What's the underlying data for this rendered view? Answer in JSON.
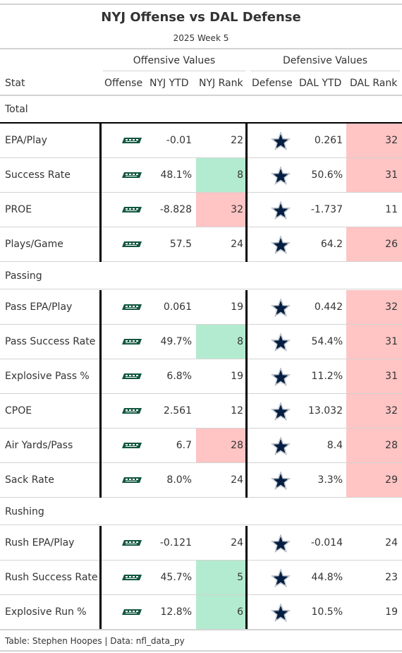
{
  "title": "NYJ Offense vs DAL Defense",
  "subtitle": "2025 Week 5",
  "spanners": {
    "offense": "Offensive Values",
    "defense": "Defensive Values"
  },
  "columns": {
    "stat": "Stat",
    "offense": "Offense",
    "nyj_ytd": "NYJ YTD",
    "nyj_rank": "NYJ Rank",
    "defense": "Defense",
    "dal_ytd": "DAL YTD",
    "dal_rank": "DAL Rank"
  },
  "logos": {
    "offense": "jets-logo-icon",
    "defense": "cowboys-star-icon"
  },
  "colors": {
    "good": "#b3ebd0",
    "bad": "#ffc4c4",
    "jets_green": "#125740",
    "cowboys_navy": "#041e42"
  },
  "groups": [
    {
      "label": "Total",
      "rows": [
        {
          "stat": "EPA/Play",
          "nyj_ytd": "-0.01",
          "nyj_rank": "22",
          "nyj_rank_hl": "",
          "dal_ytd": "0.261",
          "dal_rank": "32",
          "dal_rank_hl": "bad"
        },
        {
          "stat": "Success Rate",
          "nyj_ytd": "48.1%",
          "nyj_rank": "8",
          "nyj_rank_hl": "good",
          "dal_ytd": "50.6%",
          "dal_rank": "31",
          "dal_rank_hl": "bad"
        },
        {
          "stat": "PROE",
          "nyj_ytd": "-8.828",
          "nyj_rank": "32",
          "nyj_rank_hl": "bad",
          "dal_ytd": "-1.737",
          "dal_rank": "11",
          "dal_rank_hl": ""
        },
        {
          "stat": "Plays/Game",
          "nyj_ytd": "57.5",
          "nyj_rank": "24",
          "nyj_rank_hl": "",
          "dal_ytd": "64.2",
          "dal_rank": "26",
          "dal_rank_hl": "bad"
        }
      ]
    },
    {
      "label": "Passing",
      "rows": [
        {
          "stat": "Pass EPA/Play",
          "nyj_ytd": "0.061",
          "nyj_rank": "19",
          "nyj_rank_hl": "",
          "dal_ytd": "0.442",
          "dal_rank": "32",
          "dal_rank_hl": "bad"
        },
        {
          "stat": "Pass Success Rate",
          "nyj_ytd": "49.7%",
          "nyj_rank": "8",
          "nyj_rank_hl": "good",
          "dal_ytd": "54.4%",
          "dal_rank": "31",
          "dal_rank_hl": "bad"
        },
        {
          "stat": "Explosive Pass %",
          "nyj_ytd": "6.8%",
          "nyj_rank": "19",
          "nyj_rank_hl": "",
          "dal_ytd": "11.2%",
          "dal_rank": "31",
          "dal_rank_hl": "bad"
        },
        {
          "stat": "CPOE",
          "nyj_ytd": "2.561",
          "nyj_rank": "12",
          "nyj_rank_hl": "",
          "dal_ytd": "13.032",
          "dal_rank": "32",
          "dal_rank_hl": "bad"
        },
        {
          "stat": "Air Yards/Pass",
          "nyj_ytd": "6.7",
          "nyj_rank": "28",
          "nyj_rank_hl": "bad",
          "dal_ytd": "8.4",
          "dal_rank": "28",
          "dal_rank_hl": "bad"
        },
        {
          "stat": "Sack Rate",
          "nyj_ytd": "8.0%",
          "nyj_rank": "24",
          "nyj_rank_hl": "",
          "dal_ytd": "3.3%",
          "dal_rank": "29",
          "dal_rank_hl": "bad"
        }
      ]
    },
    {
      "label": "Rushing",
      "rows": [
        {
          "stat": "Rush EPA/Play",
          "nyj_ytd": "-0.121",
          "nyj_rank": "24",
          "nyj_rank_hl": "",
          "dal_ytd": "-0.014",
          "dal_rank": "24",
          "dal_rank_hl": ""
        },
        {
          "stat": "Rush Success Rate",
          "nyj_ytd": "45.7%",
          "nyj_rank": "5",
          "nyj_rank_hl": "good",
          "dal_ytd": "44.8%",
          "dal_rank": "23",
          "dal_rank_hl": ""
        },
        {
          "stat": "Explosive Run %",
          "nyj_ytd": "12.8%",
          "nyj_rank": "6",
          "nyj_rank_hl": "good",
          "dal_ytd": "10.5%",
          "dal_rank": "19",
          "dal_rank_hl": ""
        }
      ]
    }
  ],
  "footer": "Table: Stephen Hoopes | Data: nfl_data_py"
}
